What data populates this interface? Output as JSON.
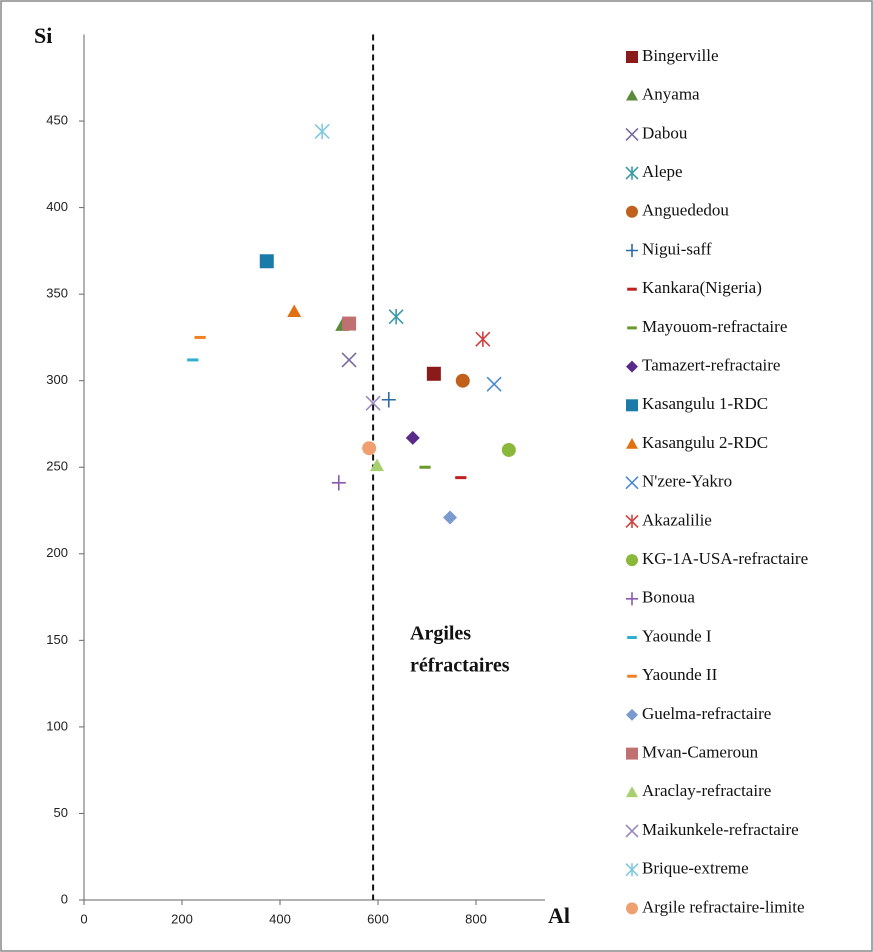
{
  "chart_data": {
    "type": "scatter",
    "y_label": "Si",
    "x_label": "Al",
    "annotation": [
      "Argiles",
      "réfractaires"
    ],
    "vline": 590,
    "xlim": [
      0,
      900
    ],
    "xticks": [
      0,
      200,
      400,
      600,
      800
    ],
    "ylim": [
      0,
      500
    ],
    "yticks": [
      0,
      50,
      100,
      150,
      200,
      250,
      300,
      350,
      400,
      450
    ],
    "series": [
      {
        "name": "Bingerville",
        "color": "#8b1a1a",
        "marker": "square",
        "x": [
          714
        ],
        "values": [
          304
        ]
      },
      {
        "name": "Anyama",
        "color": "#5a8a3a",
        "marker": "triangle",
        "x": [
          527
        ],
        "values": [
          332
        ]
      },
      {
        "name": "Dabou",
        "color": "#7a6aa0",
        "marker": "x",
        "x": [
          541
        ],
        "values": [
          312
        ]
      },
      {
        "name": "Alepe",
        "color": "#3a9aa8",
        "marker": "asterisk",
        "x": [
          637
        ],
        "values": [
          337
        ]
      },
      {
        "name": "Anguededou",
        "color": "#c0601a",
        "marker": "circle",
        "x": [
          773
        ],
        "values": [
          300
        ]
      },
      {
        "name": "Nigui-saff",
        "color": "#2a6aa8",
        "marker": "plus",
        "x": [
          622
        ],
        "values": [
          289
        ]
      },
      {
        "name": "Kankara(Nigeria)",
        "color": "#c02020",
        "marker": "dash",
        "x": [
          769
        ],
        "values": [
          244
        ]
      },
      {
        "name": "Mayouom-refractaire",
        "color": "#6a9a2a",
        "marker": "dash",
        "x": [
          696
        ],
        "values": [
          250
        ]
      },
      {
        "name": "Tamazert-refractaire",
        "color": "#5a2a8a",
        "marker": "diamond",
        "x": [
          671
        ],
        "values": [
          267
        ]
      },
      {
        "name": "Kasangulu 1-RDC",
        "color": "#1a7aa8",
        "marker": "square",
        "x": [
          373
        ],
        "values": [
          369
        ]
      },
      {
        "name": "Kasangulu 2-RDC",
        "color": "#e07010",
        "marker": "triangle",
        "x": [
          429
        ],
        "values": [
          340
        ]
      },
      {
        "name": "N'zere-Yakro",
        "color": "#4a8ad0",
        "marker": "x",
        "x": [
          837
        ],
        "values": [
          298
        ]
      },
      {
        "name": "Akazalilie",
        "color": "#d04040",
        "marker": "asterisk",
        "x": [
          814
        ],
        "values": [
          324
        ]
      },
      {
        "name": "KG-1A-USA-refractaire",
        "color": "#8ab83a",
        "marker": "circle",
        "x": [
          867
        ],
        "values": [
          260
        ]
      },
      {
        "name": "Bonoua",
        "color": "#8a5ab0",
        "marker": "plus",
        "x": [
          520
        ],
        "values": [
          241
        ]
      },
      {
        "name": "Yaounde I",
        "color": "#30b0d0",
        "marker": "dash",
        "x": [
          222
        ],
        "values": [
          312
        ]
      },
      {
        "name": "Yaounde II",
        "color": "#f08020",
        "marker": "dash",
        "x": [
          237
        ],
        "values": [
          325
        ]
      },
      {
        "name": "Guelma-refractaire",
        "color": "#7a9ad0",
        "marker": "diamond",
        "x": [
          747
        ],
        "values": [
          221
        ]
      },
      {
        "name": "Mvan-Cameroun",
        "color": "#c07070",
        "marker": "square",
        "x": [
          541
        ],
        "values": [
          333
        ]
      },
      {
        "name": "Araclay-refractaire",
        "color": "#a8d070",
        "marker": "triangle",
        "x": [
          598
        ],
        "values": [
          251
        ]
      },
      {
        "name": "Maikunkele-refractaire",
        "color": "#9a8ac0",
        "marker": "x",
        "x": [
          590
        ],
        "values": [
          287
        ]
      },
      {
        "name": "Brique-extreme",
        "color": "#80c8e0",
        "marker": "asterisk",
        "x": [
          486
        ],
        "values": [
          444
        ]
      },
      {
        "name": "Argile refractaire-limite",
        "color": "#f0a070",
        "marker": "circle",
        "x": [
          582
        ],
        "values": [
          261
        ]
      }
    ]
  }
}
